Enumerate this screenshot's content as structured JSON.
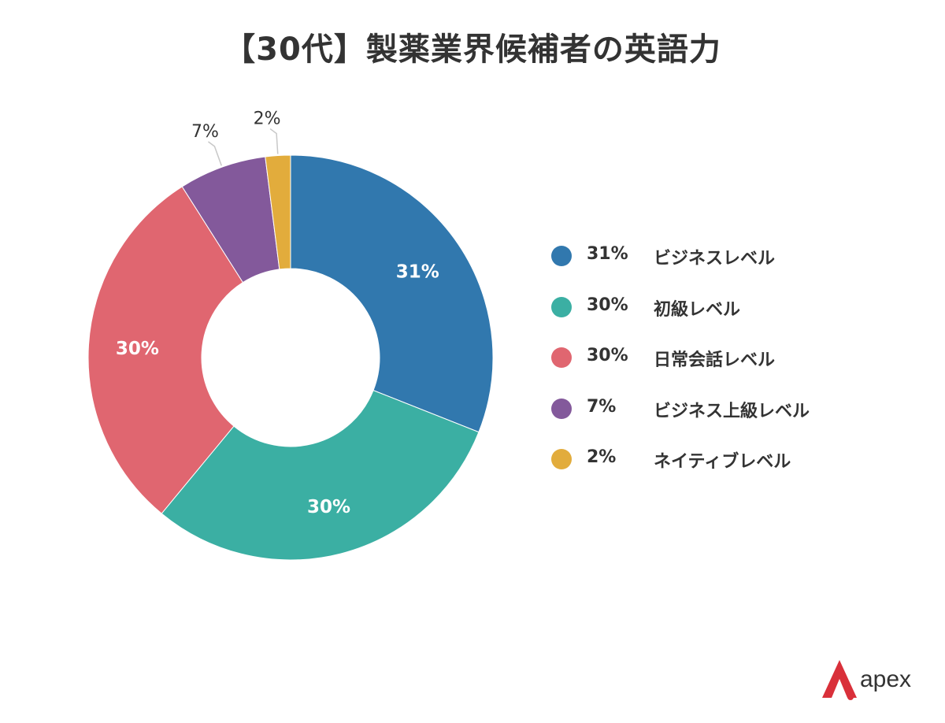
{
  "title": "【30代】製薬業界候補者の英語力",
  "chart_data": {
    "type": "pie",
    "donut": true,
    "title": "【30代】製薬業界候補者の英語力",
    "slices": [
      {
        "label": "ビジネスレベル",
        "value": 31,
        "value_label": "31%",
        "color": "#3178AE"
      },
      {
        "label": "初級レベル",
        "value": 30,
        "value_label": "30%",
        "color": "#3BAFA3"
      },
      {
        "label": "日常会話レベル",
        "value": 30,
        "value_label": "30%",
        "color": "#E06670"
      },
      {
        "label": "ビジネス上級レベル",
        "value": 7,
        "value_label": "7%",
        "color": "#83599B"
      },
      {
        "label": "ネイティブレベル",
        "value": 2,
        "value_label": "2%",
        "color": "#E2AC3C"
      }
    ],
    "legend_position": "right"
  },
  "legend": [
    {
      "pct": "31%",
      "label": "ビジネスレベル",
      "color": "#3178AE"
    },
    {
      "pct": "30%",
      "label": "初級レベル",
      "color": "#3BAFA3"
    },
    {
      "pct": "30%",
      "label": "日常会話レベル",
      "color": "#E06670"
    },
    {
      "pct": "7%",
      "label": "ビジネス上級レベル",
      "color": "#83599B"
    },
    {
      "pct": "2%",
      "label": "ネイティブレベル",
      "color": "#E2AC3C"
    }
  ],
  "logo": {
    "text": "apex",
    "color": "#D9303A"
  }
}
